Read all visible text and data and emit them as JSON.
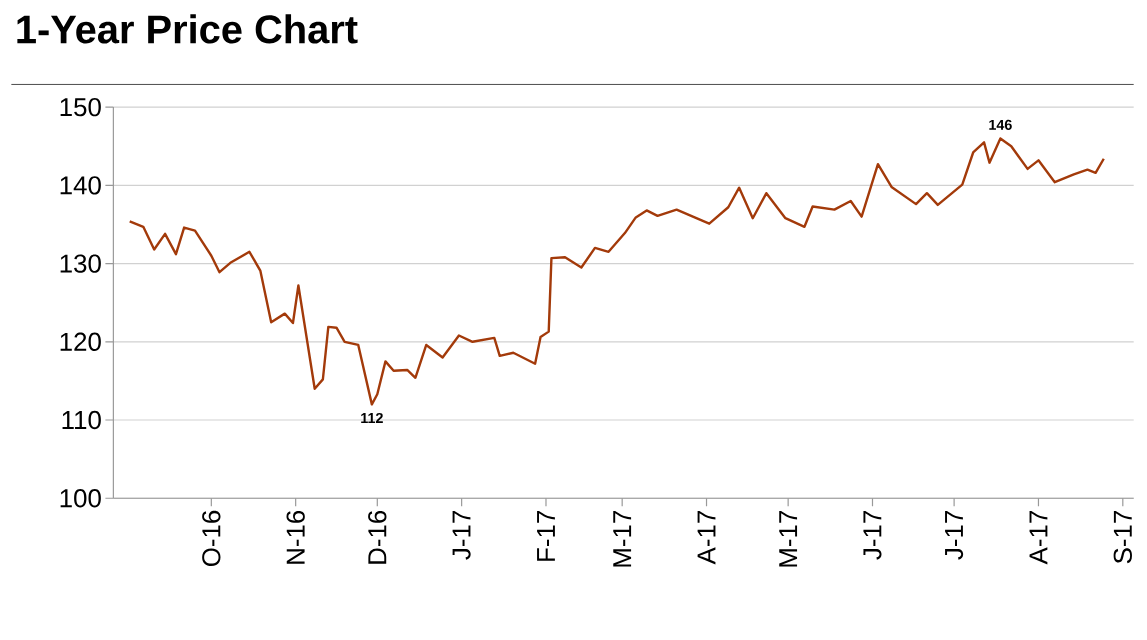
{
  "chart_data": {
    "type": "line",
    "title": "1-Year Price Chart",
    "x": [
      "2016-09-01",
      "2016-09-06",
      "2016-09-10",
      "2016-09-14",
      "2016-09-18",
      "2016-09-21",
      "2016-09-25",
      "2016-10-01",
      "2016-10-04",
      "2016-10-08",
      "2016-10-15",
      "2016-10-19",
      "2016-10-23",
      "2016-10-28",
      "2016-10-31",
      "2016-11-02",
      "2016-11-08",
      "2016-11-11",
      "2016-11-13",
      "2016-11-16",
      "2016-11-19",
      "2016-11-24",
      "2016-11-29",
      "2016-12-01",
      "2016-12-04",
      "2016-12-07",
      "2016-12-12",
      "2016-12-15",
      "2016-12-19",
      "2016-12-25",
      "2016-12-31",
      "2017-01-05",
      "2017-01-13",
      "2017-01-15",
      "2017-01-20",
      "2017-01-28",
      "2017-01-30",
      "2017-02-02",
      "2017-02-03",
      "2017-02-08",
      "2017-02-14",
      "2017-02-19",
      "2017-02-24",
      "2017-03-02",
      "2017-03-06",
      "2017-03-10",
      "2017-03-14",
      "2017-03-21",
      "2017-04-02",
      "2017-04-09",
      "2017-04-13",
      "2017-04-18",
      "2017-04-23",
      "2017-04-30",
      "2017-05-07",
      "2017-05-10",
      "2017-05-18",
      "2017-05-24",
      "2017-05-28",
      "2017-06-03",
      "2017-06-08",
      "2017-06-17",
      "2017-06-21",
      "2017-06-25",
      "2017-07-04",
      "2017-07-08",
      "2017-07-12",
      "2017-07-14",
      "2017-07-18",
      "2017-07-22",
      "2017-07-28",
      "2017-08-01",
      "2017-08-07",
      "2017-08-14",
      "2017-08-19",
      "2017-08-22",
      "2017-08-25"
    ],
    "series": [
      {
        "color": "#a33a0a",
        "values": [
          135.4,
          134.7,
          131.8,
          133.8,
          131.2,
          134.6,
          134.2,
          131.0,
          128.9,
          130.1,
          131.5,
          129.1,
          122.5,
          123.6,
          122.4,
          127.2,
          114.0,
          115.2,
          121.9,
          121.8,
          120.0,
          119.6,
          112,
          113.3,
          117.5,
          116.3,
          116.4,
          115.4,
          119.6,
          118.0,
          120.8,
          120.0,
          120.5,
          118.2,
          118.6,
          117.2,
          120.6,
          121.3,
          130.7,
          130.8,
          129.5,
          132.0,
          131.5,
          133.9,
          135.9,
          136.8,
          136.1,
          136.9,
          135.1,
          137.2,
          139.7,
          135.8,
          139.0,
          135.8,
          134.7,
          137.3,
          136.9,
          138.0,
          136.0,
          142.7,
          139.8,
          137.6,
          139.0,
          137.5,
          140.1,
          144.2,
          145.5,
          142.9,
          146,
          145.0,
          142.1,
          143.2,
          140.4,
          141.4,
          142.0,
          141.6,
          143.4
        ]
      }
    ],
    "xlim": [
      "2016-08-26",
      "2017-09-05"
    ],
    "xticks": [
      {
        "value": "2016-10-01",
        "label": "O-16"
      },
      {
        "value": "2016-11-01",
        "label": "N-16"
      },
      {
        "value": "2016-12-01",
        "label": "D-16"
      },
      {
        "value": "2017-01-01",
        "label": "J-17"
      },
      {
        "value": "2017-02-01",
        "label": "F-17"
      },
      {
        "value": "2017-03-01",
        "label": "M-17"
      },
      {
        "value": "2017-04-01",
        "label": "A-17"
      },
      {
        "value": "2017-05-01",
        "label": "M-17"
      },
      {
        "value": "2017-06-01",
        "label": "J-17"
      },
      {
        "value": "2017-07-01",
        "label": "J-17"
      },
      {
        "value": "2017-08-01",
        "label": "A-17"
      },
      {
        "value": "2017-09-01",
        "label": "S-17"
      }
    ],
    "ylim": [
      100,
      150
    ],
    "yticks": [
      100,
      110,
      120,
      130,
      140,
      150
    ],
    "grid": "y",
    "annotations": [
      {
        "text": "112",
        "x": "2016-11-29",
        "y": 112
      },
      {
        "text": "146",
        "x": "2017-07-18",
        "y": 146
      }
    ]
  }
}
